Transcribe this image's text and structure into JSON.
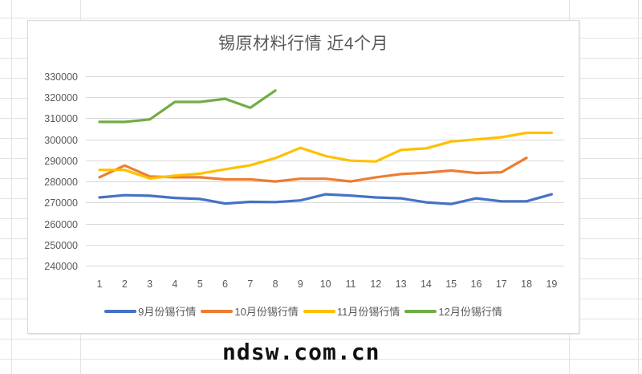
{
  "chart_data": {
    "type": "line",
    "title": "锡原材料行情 近4个月",
    "xlabel": "",
    "ylabel": "",
    "x": [
      1,
      2,
      3,
      4,
      5,
      6,
      7,
      8,
      9,
      10,
      11,
      12,
      13,
      14,
      15,
      16,
      17,
      18,
      19
    ],
    "yticks": [
      240000,
      250000,
      260000,
      270000,
      280000,
      290000,
      300000,
      310000,
      320000,
      330000
    ],
    "ylim": [
      240000,
      330000
    ],
    "grid": true,
    "legend_position": "bottom",
    "series": [
      {
        "name": "9月份锡行情",
        "color": "#4472C4",
        "values": [
          272400,
          273500,
          273200,
          272200,
          271700,
          269500,
          270300,
          270200,
          271000,
          273900,
          273300,
          272400,
          272000,
          270100,
          269300,
          272000,
          270600,
          270600,
          273900
        ]
      },
      {
        "name": "10月份锡行情",
        "color": "#ED7D31",
        "values": [
          282000,
          287600,
          282400,
          282000,
          282000,
          281000,
          281000,
          280000,
          281300,
          281300,
          280000,
          282000,
          283500,
          284200,
          285200,
          284000,
          284400,
          291200
        ]
      },
      {
        "name": "11月份锡行情",
        "color": "#FFC000",
        "values": [
          285500,
          285500,
          281400,
          282800,
          283700,
          285800,
          287700,
          291100,
          296000,
          292100,
          289900,
          289500,
          295000,
          295700,
          299000,
          300000,
          301000,
          303100,
          303100
        ]
      },
      {
        "name": "12月份锡行情",
        "color": "#70AD47",
        "values": [
          308300,
          308300,
          309500,
          317800,
          317800,
          319300,
          315000,
          323200
        ]
      }
    ]
  },
  "watermark": "ndsw.com.cn"
}
